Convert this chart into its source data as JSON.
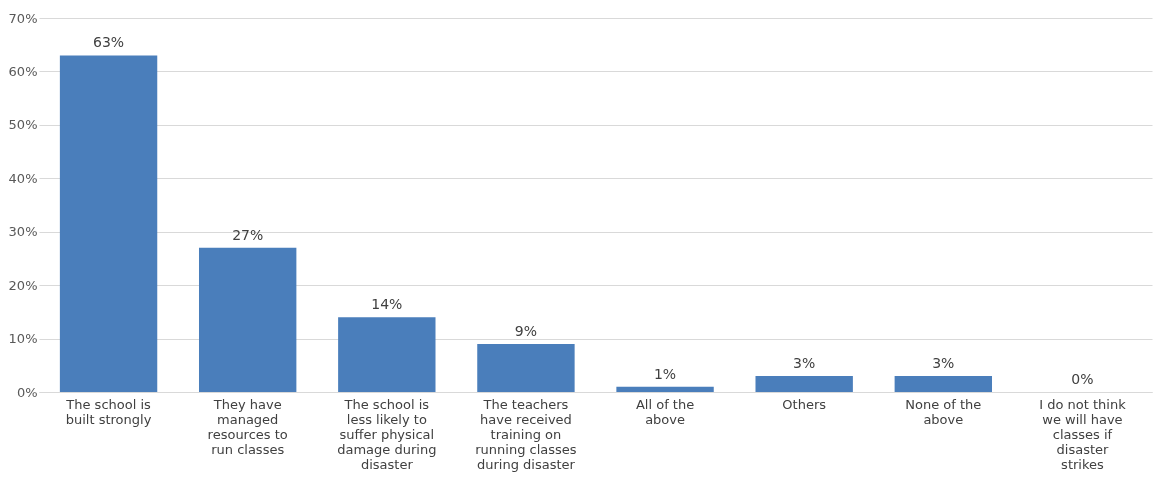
{
  "chart_data": {
    "type": "bar",
    "categories": [
      "The school is built strongly",
      "They have managed resources to run classes",
      "The school is less likely to suffer physical damage during disaster",
      "The teachers have received training on running classes during disaster",
      "All of the above",
      "Others",
      "None of the above",
      "I do not think we will have classes if disaster strikes"
    ],
    "values": [
      63,
      27,
      14,
      9,
      1,
      3,
      3,
      0
    ],
    "value_labels": [
      "63%",
      "27%",
      "14%",
      "9%",
      "1%",
      "3%",
      "3%",
      "0%"
    ],
    "color": "#4a7ebb",
    "ylim": [
      0,
      70
    ],
    "yticks": [
      {
        "value": 0,
        "label": "0%"
      },
      {
        "value": 10,
        "label": "10%"
      },
      {
        "value": 20,
        "label": "20%"
      },
      {
        "value": 30,
        "label": "30%"
      },
      {
        "value": 40,
        "label": "40%"
      },
      {
        "value": 50,
        "label": "50%"
      },
      {
        "value": 60,
        "label": "60%"
      },
      {
        "value": 70,
        "label": "70%"
      }
    ],
    "grid": "y"
  }
}
